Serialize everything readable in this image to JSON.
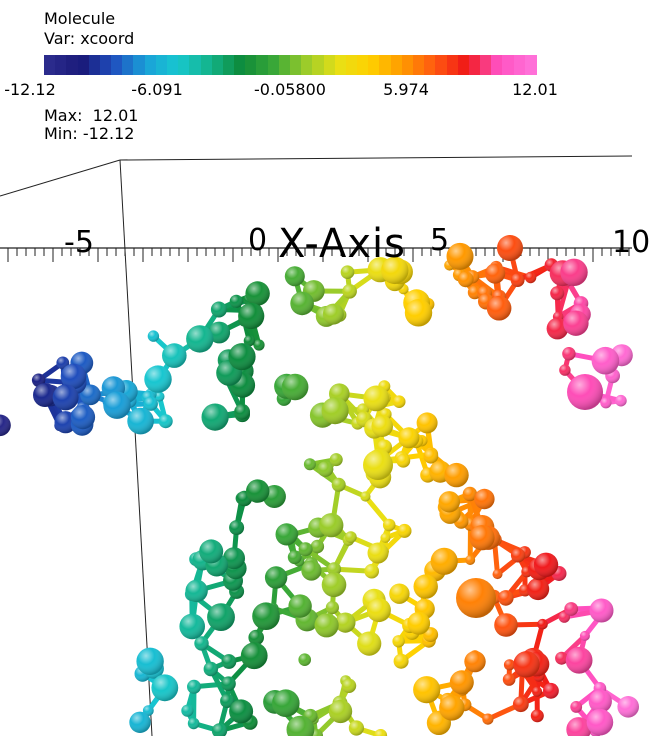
{
  "legend": {
    "title": "Molecule",
    "variable": "Var: xcoord",
    "tick_labels": [
      "-12.12",
      "-6.091",
      "-0.05800",
      "5.974",
      "12.01"
    ],
    "max_text": "Max:  12.01",
    "min_text": "Min: -12.12",
    "color_stops": [
      "#2b2b8c",
      "#1a1a7a",
      "#1f4fbf",
      "#1aa0d8",
      "#18c8d0",
      "#14b48a",
      "#0d8a3a",
      "#3aa838",
      "#9acc2a",
      "#e8e016",
      "#ffd000",
      "#ff9a00",
      "#ff5a10",
      "#f01818",
      "#ff50c0",
      "#ff70d8"
    ]
  },
  "axis": {
    "title": "X-Axis",
    "labels": [
      "-5",
      "0",
      "5",
      "10"
    ]
  }
}
